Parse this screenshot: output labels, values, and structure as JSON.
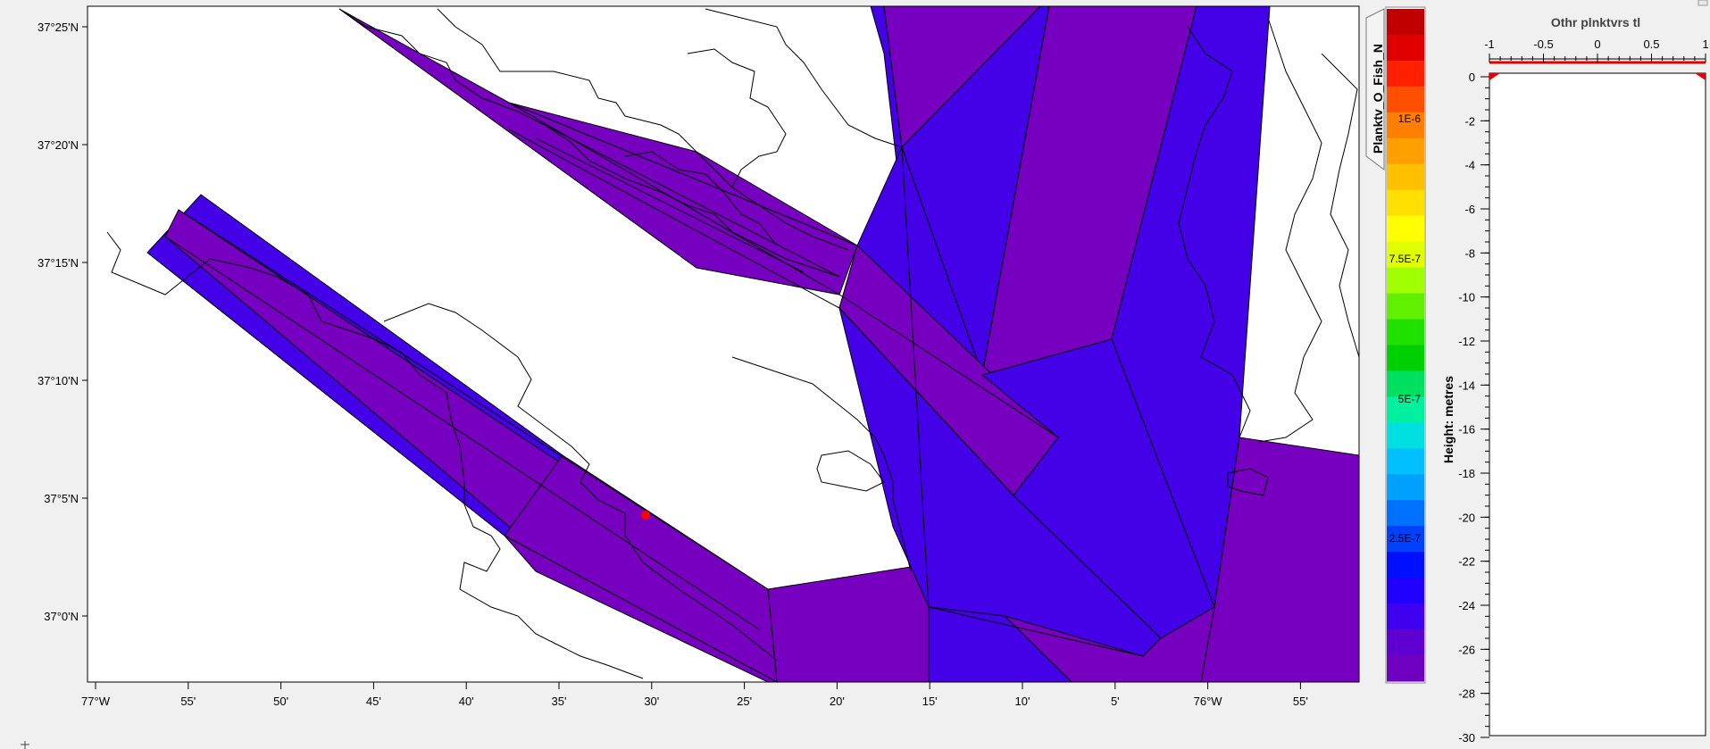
{
  "map": {
    "lat_labels": [
      "37°25'N",
      "37°20'N",
      "37°15'N",
      "37°10'N",
      "37°5'N",
      "37°0'N"
    ],
    "lon_labels": [
      "77°W",
      "55'",
      "50'",
      "45'",
      "40'",
      "35'",
      "30'",
      "25'",
      "20'",
      "15'",
      "10'",
      "5'",
      "76°W",
      "55'"
    ],
    "colors": {
      "fill_purple": "#7700c0",
      "fill_blue": "#4400e6",
      "coast": "#000000",
      "point": "#ff0000"
    }
  },
  "colorbar": {
    "title": "Planktv_O_Fish_N",
    "tick_labels": [
      "1E-6",
      "7.5E-7",
      "5E-7",
      "2.5E-7"
    ]
  },
  "profile": {
    "title": "Othr plnktvrs tl",
    "x_ticks": [
      "-1",
      "-0.5",
      "0",
      "0.5",
      "1"
    ],
    "y_ticks": [
      "0",
      "-2",
      "-4",
      "-6",
      "-8",
      "-10",
      "-12",
      "-14",
      "-16",
      "-18",
      "-20",
      "-22",
      "-24",
      "-26",
      "-28",
      "-30"
    ],
    "ylabel": "Height: metres"
  }
}
